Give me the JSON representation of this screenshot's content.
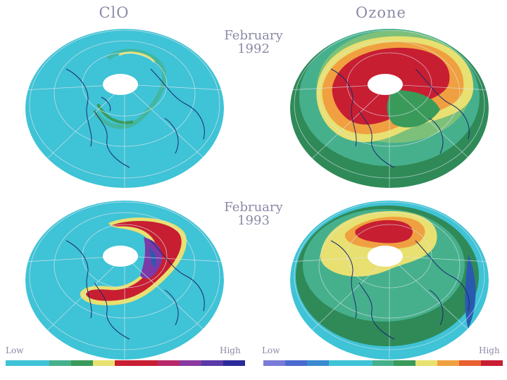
{
  "titles": {
    "left": "ClO",
    "right": "Ozone"
  },
  "rows": [
    {
      "month": "February",
      "year": "1992"
    },
    {
      "month": "February",
      "year": "1993"
    }
  ],
  "legends": {
    "clo": {
      "low": "Low",
      "high": "High",
      "colors": [
        "#3fc3d6",
        "#3fc3d6",
        "#46b08c",
        "#3a9a5a",
        "#e8e070",
        "#c81e32",
        "#c81e32",
        "#b8286a",
        "#8a3aa0",
        "#5a3aa6",
        "#2a2a9a"
      ]
    },
    "ozone": {
      "low": "Low",
      "high": "High",
      "colors": [
        "#7a7ad8",
        "#4a6ad0",
        "#3a8ad0",
        "#3fc3d6",
        "#3fc3d6",
        "#46b08c",
        "#3a9a5a",
        "#e8e070",
        "#f0a040",
        "#e86030",
        "#c81e32"
      ]
    }
  },
  "colors": {
    "background": "#3fc3d6",
    "grid": "#dfe6f0",
    "coast": "#1a2a70",
    "red": "#c81e32",
    "purple": "#7a3aa8",
    "yellow": "#e8e070",
    "orange": "#f0a040",
    "green": "#46b08c",
    "darkgreen": "#2f8a58",
    "blue": "#2a5ab0"
  }
}
